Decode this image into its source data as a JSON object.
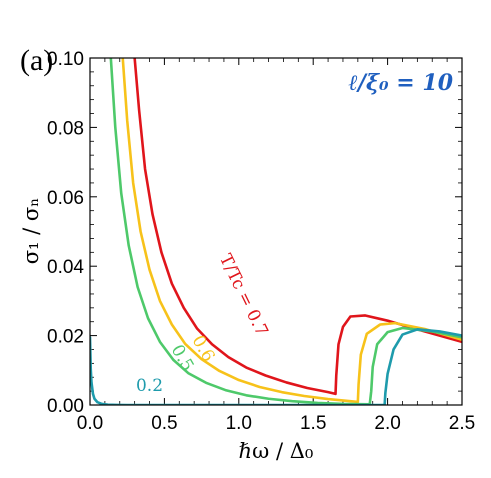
{
  "chart_data": {
    "type": "line",
    "panel_label": "(a)",
    "xlabel": "ℏω / Δ₀",
    "ylabel": "σ₁ / σₙ",
    "xlim": [
      0.0,
      2.5
    ],
    "ylim": [
      0.0,
      0.1
    ],
    "xticks": [
      "0.0",
      "0.5",
      "1.0",
      "1.5",
      "2.0",
      "2.5"
    ],
    "xtick_values": [
      0.0,
      0.5,
      1.0,
      1.5,
      2.0,
      2.5
    ],
    "yticks": [
      "0.00",
      "0.02",
      "0.04",
      "0.06",
      "0.08",
      "0.10"
    ],
    "ytick_values": [
      0.0,
      0.02,
      0.04,
      0.06,
      0.08,
      0.1
    ],
    "annotation": "ℓ/ξ₀ = 10",
    "annotation_color": "#1f5fbf",
    "series": [
      {
        "name": "T/Tc = 0.7",
        "label_text": "T/Tc = 0.7",
        "color": "#e0151b",
        "x": [
          0.3,
          0.33,
          0.37,
          0.42,
          0.48,
          0.55,
          0.63,
          0.72,
          0.82,
          0.93,
          1.05,
          1.18,
          1.32,
          1.46,
          1.6,
          1.65,
          1.655,
          1.67,
          1.7,
          1.75,
          1.85,
          2.0,
          2.2,
          2.5
        ],
        "values": [
          0.1,
          0.085,
          0.068,
          0.055,
          0.044,
          0.035,
          0.028,
          0.022,
          0.0175,
          0.0138,
          0.0108,
          0.0085,
          0.0065,
          0.0049,
          0.0037,
          0.0032,
          0.0085,
          0.0175,
          0.0225,
          0.0255,
          0.0258,
          0.0243,
          0.0218,
          0.0182
        ]
      },
      {
        "name": "0.6",
        "label_text": "0.6",
        "color": "#f7c21a",
        "x": [
          0.22,
          0.25,
          0.29,
          0.34,
          0.4,
          0.47,
          0.55,
          0.64,
          0.75,
          0.87,
          1.0,
          1.14,
          1.29,
          1.44,
          1.6,
          1.75,
          1.8,
          1.805,
          1.82,
          1.86,
          1.95,
          2.05,
          2.25,
          2.5
        ],
        "values": [
          0.1,
          0.082,
          0.064,
          0.05,
          0.039,
          0.03,
          0.0232,
          0.0176,
          0.0132,
          0.0098,
          0.0072,
          0.0052,
          0.0037,
          0.0026,
          0.0017,
          0.0011,
          0.0009,
          0.006,
          0.0145,
          0.0205,
          0.0232,
          0.0236,
          0.0219,
          0.0188
        ]
      },
      {
        "name": "0.5",
        "label_text": "0.5",
        "color": "#4ec96a",
        "x": [
          0.14,
          0.17,
          0.21,
          0.26,
          0.32,
          0.39,
          0.47,
          0.56,
          0.66,
          0.78,
          0.91,
          1.05,
          1.2,
          1.36,
          1.53,
          1.7,
          1.88,
          1.89,
          1.9,
          1.93,
          2.0,
          2.1,
          2.3,
          2.5
        ],
        "values": [
          0.1,
          0.08,
          0.061,
          0.046,
          0.034,
          0.025,
          0.0182,
          0.013,
          0.0092,
          0.0064,
          0.0043,
          0.0028,
          0.0018,
          0.0011,
          0.0006,
          0.0003,
          0.0002,
          0.004,
          0.011,
          0.0175,
          0.021,
          0.0222,
          0.0212,
          0.0195
        ]
      },
      {
        "name": "0.2",
        "label_text": "0.2",
        "color": "#1e9bac",
        "x": [
          0.0,
          0.005,
          0.01,
          0.02,
          0.03,
          0.05,
          0.08,
          0.12,
          0.18,
          0.25,
          0.4,
          0.8,
          1.2,
          1.6,
          1.98,
          1.985,
          2.0,
          2.04,
          2.1,
          2.2,
          2.35,
          2.5
        ],
        "values": [
          0.0195,
          0.0105,
          0.0065,
          0.0032,
          0.0018,
          0.0008,
          0.0003,
          0.0001,
          3e-05,
          0.0,
          0.0,
          0.0,
          0.0,
          0.0,
          0.0,
          0.0035,
          0.009,
          0.016,
          0.0203,
          0.0218,
          0.0212,
          0.02
        ]
      }
    ]
  }
}
